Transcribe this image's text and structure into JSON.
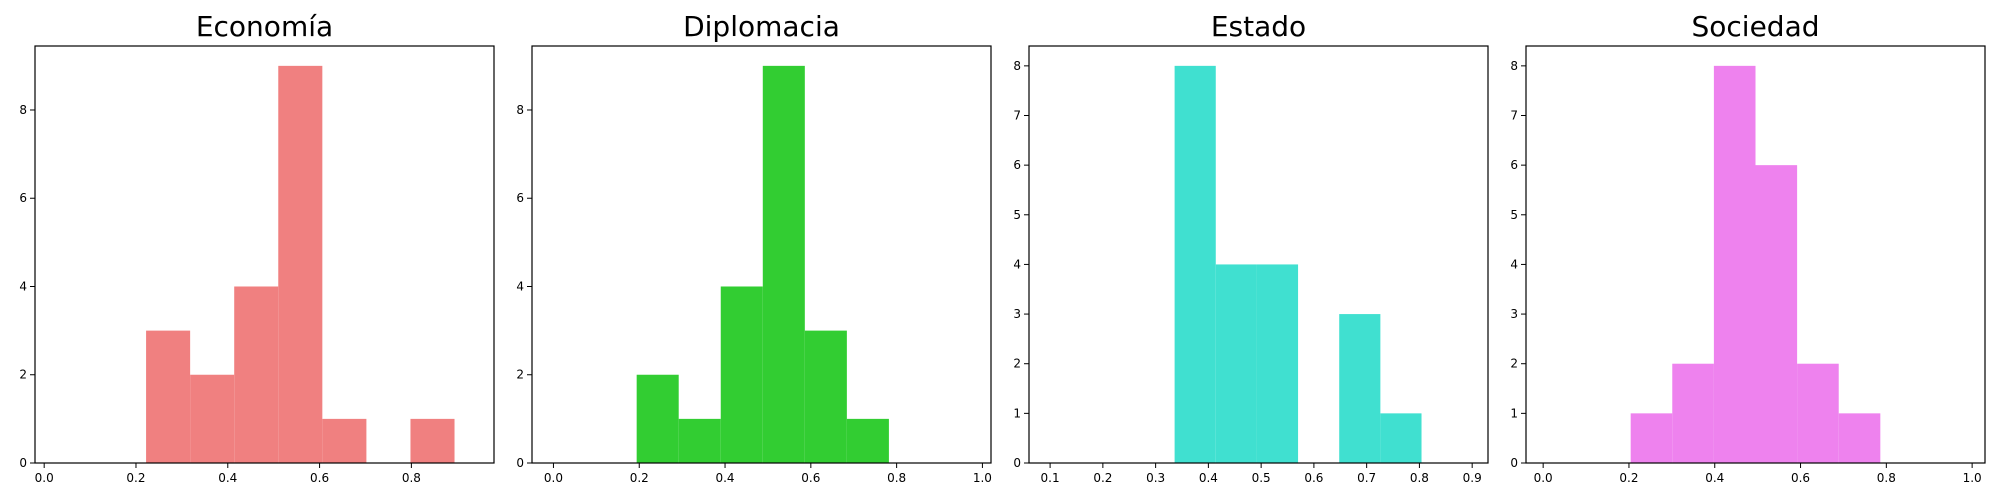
{
  "chart_data": [
    {
      "type": "bar",
      "title": "Economía",
      "color": "#f08080",
      "xlim": [
        -0.02,
        0.98
      ],
      "ylim": [
        0,
        9.45
      ],
      "xticks": [
        "0.0",
        "0.2",
        "0.4",
        "0.6",
        "0.8"
      ],
      "yticks": [
        "0",
        "2",
        "4",
        "6",
        "8"
      ],
      "bins": [
        {
          "x0": 0.222,
          "x1": 0.318,
          "count": 3
        },
        {
          "x0": 0.318,
          "x1": 0.414,
          "count": 2
        },
        {
          "x0": 0.414,
          "x1": 0.51,
          "count": 4
        },
        {
          "x0": 0.51,
          "x1": 0.606,
          "count": 9
        },
        {
          "x0": 0.606,
          "x1": 0.702,
          "count": 1
        },
        {
          "x0": 0.702,
          "x1": 0.798,
          "count": 0
        },
        {
          "x0": 0.798,
          "x1": 0.894,
          "count": 1
        }
      ]
    },
    {
      "type": "bar",
      "title": "Diplomacia",
      "color": "#32cd32",
      "xlim": [
        -0.05,
        1.02
      ],
      "ylim": [
        0,
        9.45
      ],
      "xticks": [
        "0.0",
        "0.2",
        "0.4",
        "0.6",
        "0.8",
        "1.0"
      ],
      "yticks": [
        "0",
        "2",
        "4",
        "6",
        "8"
      ],
      "bins": [
        {
          "x0": 0.194,
          "x1": 0.292,
          "count": 2
        },
        {
          "x0": 0.292,
          "x1": 0.39,
          "count": 1
        },
        {
          "x0": 0.39,
          "x1": 0.488,
          "count": 4
        },
        {
          "x0": 0.488,
          "x1": 0.586,
          "count": 9
        },
        {
          "x0": 0.586,
          "x1": 0.684,
          "count": 3
        },
        {
          "x0": 0.684,
          "x1": 0.782,
          "count": 1
        }
      ]
    },
    {
      "type": "bar",
      "title": "Estado",
      "color": "#40e0d0",
      "xlim": [
        0.06,
        0.93
      ],
      "ylim": [
        0,
        8.4
      ],
      "xticks": [
        "0.1",
        "0.2",
        "0.3",
        "0.4",
        "0.5",
        "0.6",
        "0.7",
        "0.8",
        "0.9"
      ],
      "yticks": [
        "0",
        "1",
        "2",
        "3",
        "4",
        "5",
        "6",
        "7",
        "8"
      ],
      "bins": [
        {
          "x0": 0.336,
          "x1": 0.414,
          "count": 8
        },
        {
          "x0": 0.414,
          "x1": 0.492,
          "count": 4
        },
        {
          "x0": 0.492,
          "x1": 0.57,
          "count": 4
        },
        {
          "x0": 0.57,
          "x1": 0.648,
          "count": 0
        },
        {
          "x0": 0.648,
          "x1": 0.726,
          "count": 3
        },
        {
          "x0": 0.726,
          "x1": 0.804,
          "count": 1
        }
      ]
    },
    {
      "type": "bar",
      "title": "Sociedad",
      "color": "#ee82ee",
      "xlim": [
        -0.04,
        1.03
      ],
      "ylim": [
        0,
        8.4
      ],
      "xticks": [
        "0.0",
        "0.2",
        "0.4",
        "0.6",
        "0.8",
        "1.0"
      ],
      "yticks": [
        "0",
        "1",
        "2",
        "3",
        "4",
        "5",
        "6",
        "7",
        "8"
      ],
      "bins": [
        {
          "x0": 0.204,
          "x1": 0.301,
          "count": 1
        },
        {
          "x0": 0.301,
          "x1": 0.398,
          "count": 2
        },
        {
          "x0": 0.398,
          "x1": 0.495,
          "count": 8
        },
        {
          "x0": 0.495,
          "x1": 0.592,
          "count": 6
        },
        {
          "x0": 0.592,
          "x1": 0.689,
          "count": 2
        },
        {
          "x0": 0.689,
          "x1": 0.786,
          "count": 1
        }
      ]
    }
  ]
}
